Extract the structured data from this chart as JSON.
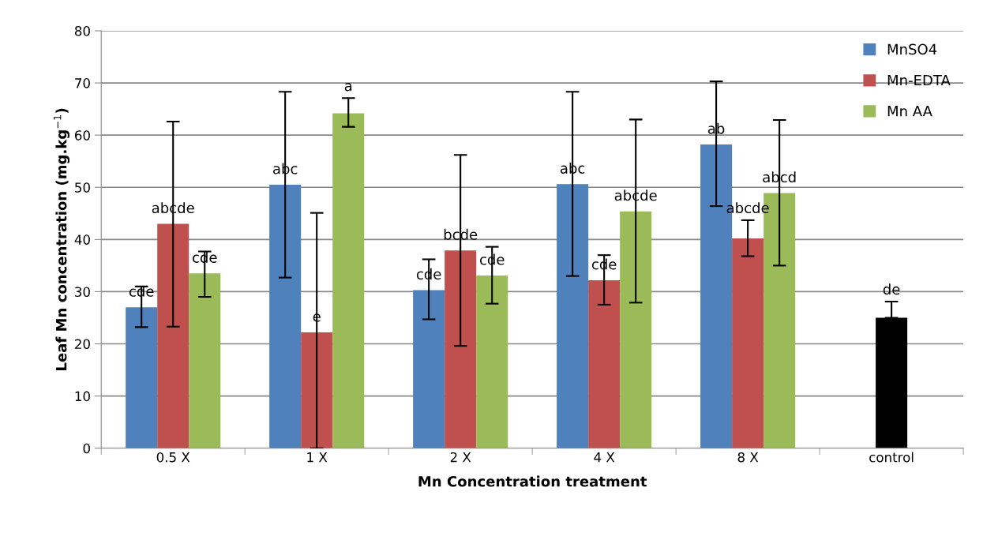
{
  "chart_data": {
    "type": "bar",
    "xlabel": "Mn Concentration treatment",
    "ylabel": "Leaf Mn concentration (mg.kg$^{−1}$)",
    "categories": [
      "0.5 X",
      "1 X",
      "2 X",
      "4 X",
      "8 X",
      "control"
    ],
    "ylim": [
      0,
      80
    ],
    "yticks": [
      0,
      10,
      20,
      30,
      40,
      50,
      60,
      70,
      80
    ],
    "grid": "y",
    "legend": "top right",
    "series": [
      {
        "name": "MnSO4",
        "color": "#4f81bd",
        "values": [
          27.0,
          50.5,
          30.3,
          50.6,
          58.2,
          null
        ],
        "errors": [
          [
            23.2,
            31.0
          ],
          [
            32.7,
            68.3
          ],
          [
            24.7,
            36.2
          ],
          [
            33.0,
            68.3
          ],
          [
            46.4,
            70.3
          ],
          null
        ],
        "value_labels": [
          "cde",
          "abc",
          "cde",
          "abc",
          "ab",
          null
        ]
      },
      {
        "name": "Mn-EDTA",
        "color": "#c0504d",
        "values": [
          43.0,
          22.2,
          37.9,
          32.2,
          40.2,
          null
        ],
        "errors": [
          [
            23.3,
            62.6
          ],
          [
            0,
            45.1
          ],
          [
            19.6,
            56.2
          ],
          [
            27.5,
            37.0
          ],
          [
            36.8,
            43.7
          ],
          null
        ],
        "value_labels": [
          "abcde",
          "e",
          "bcde",
          "cde",
          "abcde",
          null
        ]
      },
      {
        "name": "Mn AA",
        "color": "#9bbb59",
        "values": [
          33.5,
          64.2,
          33.1,
          45.4,
          48.9,
          null
        ],
        "errors": [
          [
            29.0,
            37.7
          ],
          [
            61.6,
            67.1
          ],
          [
            27.7,
            38.6
          ],
          [
            27.9,
            63.0
          ],
          [
            35.0,
            62.9
          ],
          null
        ],
        "value_labels": [
          "cde",
          "a",
          "cde",
          "abcde",
          "abcd",
          null
        ]
      },
      {
        "color": "#000000",
        "values": [
          null,
          null,
          null,
          null,
          null,
          25.0
        ],
        "errors": [
          null,
          null,
          null,
          null,
          null,
          [
            25.0,
            28.1
          ]
        ],
        "value_labels": [
          null,
          null,
          null,
          null,
          null,
          "de"
        ]
      }
    ]
  }
}
